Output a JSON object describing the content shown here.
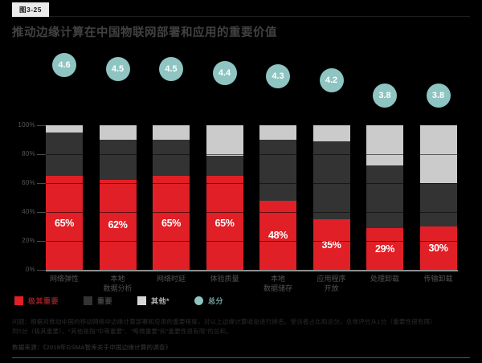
{
  "figure": {
    "badge": "图3-25",
    "title": "推动边缘计算在中国物联网部署和应用的重要价值"
  },
  "chart_data": {
    "type": "bar",
    "stacked": true,
    "title": "推动边缘计算在中国物联网部署和应用的重要价值",
    "categories": [
      "网络弹性",
      "本地\n数据分析",
      "网络时延",
      "体验质量",
      "本地\n数据储存",
      "应用程序\n开放",
      "处理卸载",
      "传输卸载"
    ],
    "series": [
      {
        "name": "极其重要",
        "color": "#e11f26",
        "values": [
          65,
          62,
          65,
          65,
          48,
          35,
          29,
          30
        ],
        "labels": [
          "65%",
          "62%",
          "65%",
          "65%",
          "48%",
          "35%",
          "29%",
          "30%"
        ]
      },
      {
        "name": "重要",
        "color": "#333333",
        "values": [
          30,
          28,
          25,
          14,
          42,
          54,
          43,
          30
        ]
      },
      {
        "name": "其他*",
        "color": "#cbcbcb",
        "values": [
          5,
          10,
          10,
          21,
          10,
          11,
          28,
          40
        ]
      }
    ],
    "scores": {
      "name": "总分",
      "color": "#8ec4c1",
      "values": [
        4.6,
        4.5,
        4.5,
        4.4,
        4.3,
        4.2,
        3.8,
        3.8
      ]
    },
    "ylim": [
      0,
      100
    ],
    "yticks": [
      100,
      80,
      60,
      40,
      20,
      0
    ],
    "ytick_labels": [
      "100%",
      "80%",
      "60%",
      "40%",
      "20%",
      "0%"
    ],
    "grid": true,
    "legend_position": "bottom"
  },
  "legend": {
    "items": [
      {
        "label": "极其重要",
        "color": "#e11f26",
        "text_color": "#8f2024",
        "shape": "square"
      },
      {
        "label": "重要",
        "color": "#333333",
        "text_color": "#454545",
        "shape": "square"
      },
      {
        "label": "其他*",
        "color": "#d6d6d6",
        "text_color": "#b3b3b3",
        "shape": "square"
      },
      {
        "label": "总分",
        "color": "#8ec4c1",
        "text_color": "#74a5a2",
        "shape": "circle"
      }
    ]
  },
  "notes": {
    "text": "问题：根据对推动中国的移动网络中边缘计算部署和应用的重要程度，对以上边缘计算收益进行排名。受访者占比和总分。总体评分从1分（重要性很有限）\n到5分（极其重要）。*其他是指“中等重要”、“略微重要”和“重要性很有限”的总和。"
  },
  "source": "数据来源：《2019年GSMA智库关于中国边缘计算的调查》"
}
